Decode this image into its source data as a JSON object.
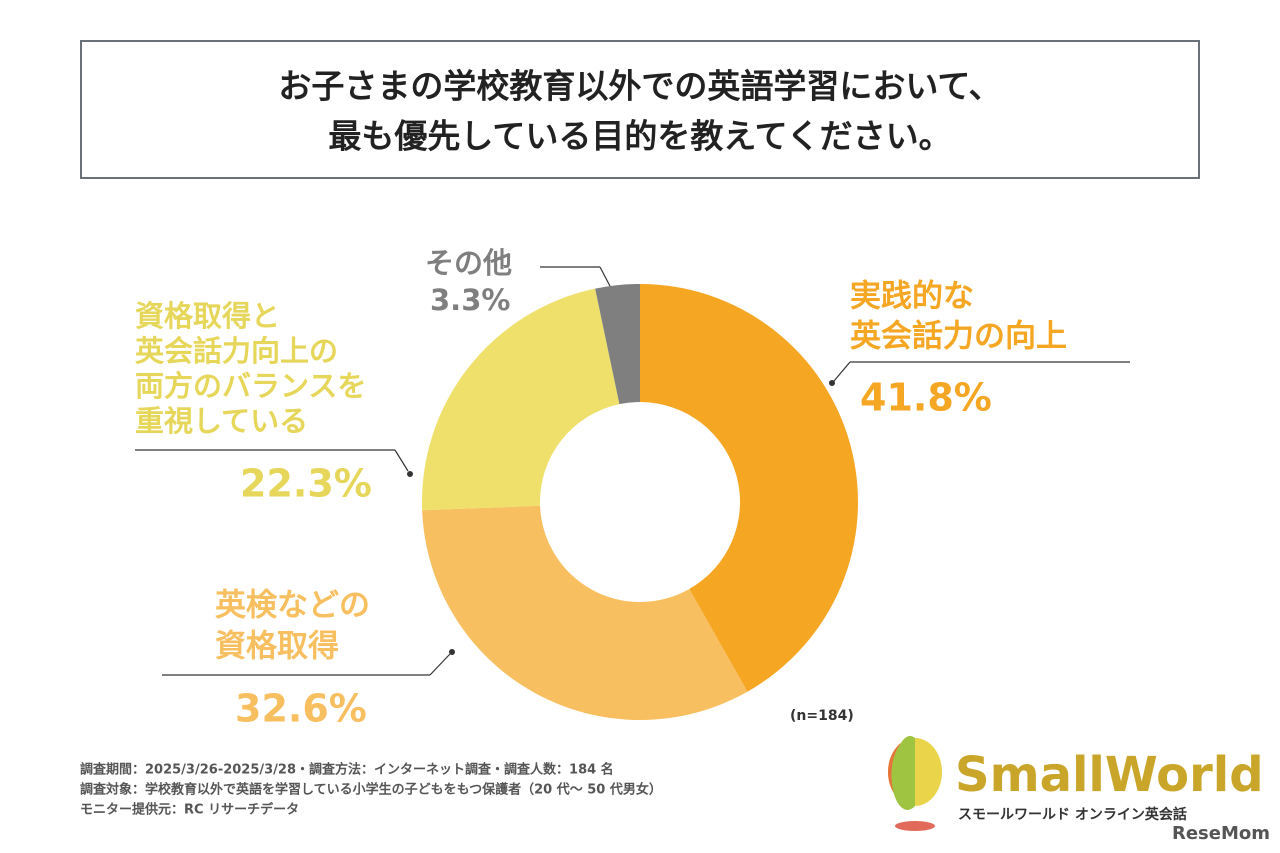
{
  "chart_data": {
    "type": "donut",
    "title": [
      "お子さまの学校教育以外での英語学習において、",
      "最も優先している目的を教えてください。"
    ],
    "categories": [
      [
        "実践的な",
        "英会話力の向上"
      ],
      [
        "英検などの",
        "資格取得"
      ],
      [
        "資格取得と",
        "英会話力向上の",
        "両方のバランスを",
        "重視している"
      ],
      [
        "その他"
      ]
    ],
    "values": [
      41.8,
      32.6,
      22.3,
      3.3
    ],
    "value_labels": [
      "41.8%",
      "32.6%",
      "22.3%",
      "3.3%"
    ],
    "colors": [
      "#f5a623",
      "#f7bf5f",
      "#eee06a",
      "#7f7f7f"
    ],
    "note": "(n=184)"
  },
  "footnotes": [
    "調査期間：2025/3/26-2025/3/28・調査方法：インターネット調査・調査人数：184 名",
    "調査対象：学校教育以外で英語を学習している小学生の子どもをもつ保護者（20 代～ 50 代男女）",
    "モニター提供元：RC リサーチデータ"
  ],
  "brand": "SmallWorld",
  "brand_sub": "スモールワールド オンライン英会話",
  "watermark": "ReseMom"
}
